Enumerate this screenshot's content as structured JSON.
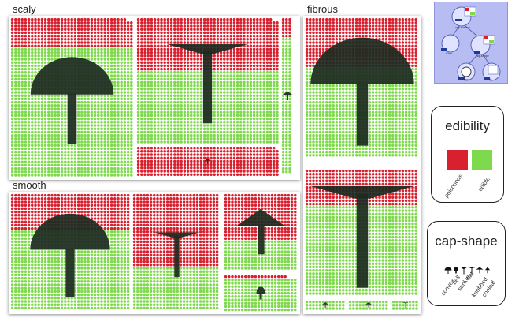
{
  "groups": [
    {
      "label": "scaly"
    },
    {
      "label": "smooth"
    },
    {
      "label": "fibrous"
    }
  ],
  "colors": {
    "poisonous": "#d9202f",
    "edible": "#7fd94c",
    "icon": "#1c2a20"
  },
  "legend_edibility": {
    "title": "edibility",
    "items": [
      {
        "label": "poisonous",
        "color": "#d9202f"
      },
      {
        "label": "edible",
        "color": "#7fd94c"
      }
    ]
  },
  "legend_capshape": {
    "title": "cap-shape",
    "items": [
      {
        "label": "convex",
        "icon": "convex-cap-icon"
      },
      {
        "label": "bell",
        "icon": "bell-cap-icon"
      },
      {
        "label": "sunken",
        "icon": "sunken-cap-icon"
      },
      {
        "label": "flat",
        "icon": "flat-cap-icon"
      },
      {
        "label": "knobbed",
        "icon": "knobbed-cap-icon"
      },
      {
        "label": "conical",
        "icon": "conical-cap-icon"
      }
    ]
  },
  "thumbnail": {
    "nodes": [
      {
        "label": "cap-surface"
      },
      {
        "label": "Chnr"
      },
      {
        "label": "cap-shape"
      },
      {
        "label": "Chnr"
      },
      {
        "label": "Chnr"
      },
      {
        "label": "Ar"
      }
    ]
  }
}
